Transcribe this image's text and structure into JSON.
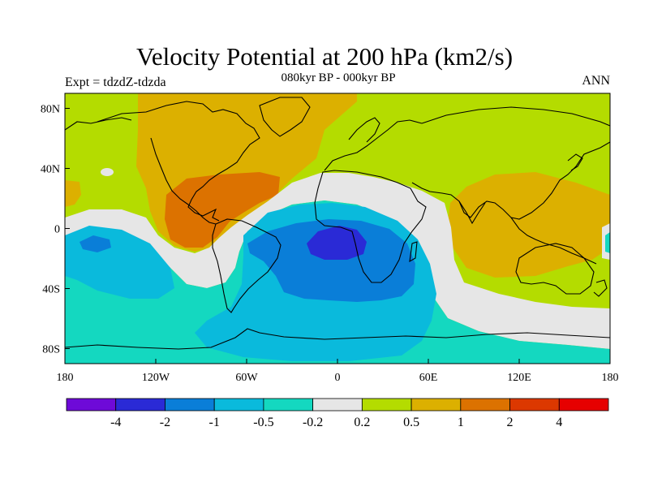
{
  "header": {
    "title": "Velocity Potential at 200 hPa (km2/s)",
    "subtitle": "080kyr BP - 000kyr BP",
    "left_string": "Expt = tdzdZ-tdzda",
    "right_string": "ANN"
  },
  "map": {
    "projection": "cylindrical-equidistant",
    "lon_range": [
      -180,
      180
    ],
    "lat_range": [
      -90,
      90
    ],
    "x_ticks": [
      {
        "lon": -180,
        "label": "180"
      },
      {
        "lon": -120,
        "label": "120W"
      },
      {
        "lon": -60,
        "label": "60W"
      },
      {
        "lon": 0,
        "label": "0"
      },
      {
        "lon": 60,
        "label": "60E"
      },
      {
        "lon": 120,
        "label": "120E"
      },
      {
        "lon": 180,
        "label": "180"
      }
    ],
    "y_ticks": [
      {
        "lat": 80,
        "label": "80N"
      },
      {
        "lat": 40,
        "label": "40N"
      },
      {
        "lat": 0,
        "label": "0"
      },
      {
        "lat": -40,
        "label": "40S"
      },
      {
        "lat": -80,
        "label": "80S"
      }
    ]
  },
  "colorbar": {
    "levels": [
      "-4",
      "-2",
      "-1",
      "-0.5",
      "-0.2",
      "0.2",
      "0.5",
      "1",
      "2",
      "4"
    ],
    "colors": [
      "#6e0ad8",
      "#2a2ad6",
      "#0a7ed8",
      "#0abadc",
      "#14d8c0",
      "#e6e6e6",
      "#b4dc00",
      "#dcb000",
      "#dc7200",
      "#dc3800",
      "#e60000"
    ]
  }
}
